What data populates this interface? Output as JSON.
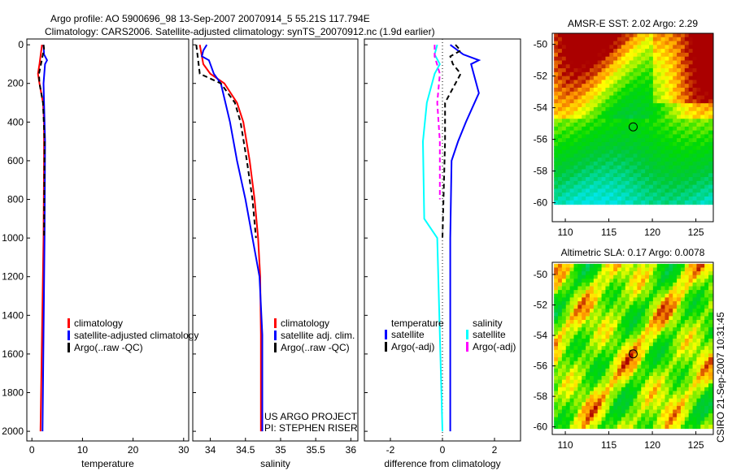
{
  "title_line1": "Argo profile: AO 5900696_98 13-Sep-2007 20070914_5 55.21S 117.794E",
  "title_line2": "Climatology: CARS2006. Satellite-adjusted climatology: synTS_20070912.nc (1.9d earlier)",
  "timestamp": "CSIRO 21-Sep-2007 10:31:45",
  "chart_data": [
    {
      "type": "line",
      "xlabel": "temperature",
      "xlim": [
        -1,
        31
      ],
      "xticks": [
        0,
        10,
        20,
        30
      ],
      "ylim": [
        2050,
        -30
      ],
      "yticks": [
        0,
        200,
        400,
        600,
        800,
        1000,
        1200,
        1400,
        1600,
        1800,
        2000
      ],
      "legend": [
        "climatology",
        "satellite-adjusted climatology",
        "Argo(..raw -QC)"
      ],
      "series": [
        {
          "name": "climatology",
          "color": "#ff0000",
          "dash": "",
          "depth": [
            0,
            100,
            150,
            200,
            300,
            400,
            600,
            1000,
            1500,
            2000
          ],
          "values": [
            2.0,
            1.5,
            1.2,
            1.5,
            2.2,
            2.4,
            2.4,
            2.3,
            2.0,
            1.7
          ]
        },
        {
          "name": "satellite-adjusted climatology",
          "color": "#0000ff",
          "dash": "",
          "depth": [
            0,
            50,
            80,
            100,
            200,
            500,
            1000,
            1500,
            2000
          ],
          "values": [
            2.3,
            2.4,
            3.0,
            2.6,
            2.3,
            2.6,
            2.5,
            2.3,
            2.1
          ]
        },
        {
          "name": "Argo(..raw -QC)",
          "color": "#000000",
          "dash": "6,4",
          "depth": [
            0,
            20,
            100,
            150,
            200,
            300,
            500,
            1000
          ],
          "values": [
            2.3,
            2.4,
            1.8,
            1.4,
            1.5,
            2.2,
            2.5,
            2.4
          ]
        }
      ]
    },
    {
      "type": "line",
      "xlabel": "salinity",
      "xlim": [
        33.75,
        36.1
      ],
      "xticks": [
        34,
        34.5,
        35,
        35.5,
        36
      ],
      "ylim": [
        2050,
        -30
      ],
      "legend": [
        "climatology",
        "satellite adj. clim.",
        "Argo(..raw -QC)"
      ],
      "annotation": [
        "US ARGO PROJECT",
        "PI: STEPHEN RISER"
      ],
      "series": [
        {
          "name": "climatology",
          "color": "#ff0000",
          "dash": "",
          "depth": [
            0,
            100,
            150,
            200,
            300,
            400,
            600,
            800,
            1000,
            1200,
            1500,
            2000
          ],
          "values": [
            33.85,
            33.9,
            34.0,
            34.2,
            34.38,
            34.47,
            34.56,
            34.63,
            34.68,
            34.71,
            34.72,
            34.72
          ]
        },
        {
          "name": "satellite adj. clim.",
          "color": "#0000ff",
          "dash": "",
          "depth": [
            0,
            30,
            60,
            80,
            150,
            200,
            400,
            600,
            800,
            1000,
            1200,
            1500,
            2000
          ],
          "values": [
            33.95,
            33.9,
            33.88,
            33.98,
            34.05,
            34.15,
            34.28,
            34.38,
            34.5,
            34.6,
            34.7,
            34.74,
            34.74
          ]
        },
        {
          "name": "Argo(..raw -QC)",
          "color": "#000000",
          "dash": "6,4",
          "depth": [
            0,
            150,
            200,
            300,
            400,
            600,
            800,
            1000
          ],
          "values": [
            33.8,
            33.85,
            34.15,
            34.35,
            34.43,
            34.52,
            34.6,
            34.65
          ]
        }
      ]
    },
    {
      "type": "line",
      "xlabel": "difference from climatology",
      "xlim": [
        -3,
        3
      ],
      "xticks": [
        -2,
        0,
        2
      ],
      "ylim": [
        2050,
        -30
      ],
      "legend_headers": [
        "temperature",
        "salinity"
      ],
      "legend": [
        "satellite",
        "Argo(-adj)",
        "satellite",
        "Argo(-adj)"
      ],
      "series": [
        {
          "name": "temperature satellite",
          "color": "#0000ff",
          "dash": "",
          "depth": [
            0,
            50,
            80,
            100,
            150,
            250,
            400,
            500,
            600,
            1000,
            2000
          ],
          "values": [
            0.3,
            0.8,
            1.4,
            1.1,
            1.2,
            1.4,
            0.9,
            0.6,
            0.35,
            0.3,
            0.3
          ]
        },
        {
          "name": "temperature Argo(-adj)",
          "color": "#000000",
          "dash": "6,4",
          "depth": [
            0,
            30,
            60,
            100,
            150,
            200,
            300,
            500,
            1000
          ],
          "values": [
            0.5,
            0.7,
            0.3,
            0.4,
            0.7,
            0.5,
            0.1,
            0.1,
            0.0
          ]
        },
        {
          "name": "salinity satellite",
          "color": "#00ffff",
          "dash": "",
          "depth": [
            0,
            50,
            100,
            150,
            300,
            500,
            900,
            1000,
            1500,
            2000
          ],
          "values": [
            -0.2,
            -0.3,
            -0.1,
            -0.3,
            -0.6,
            -0.75,
            -0.7,
            -0.2,
            -0.1,
            0.0
          ]
        },
        {
          "name": "salinity Argo(-adj)",
          "color": "#ff00ff",
          "dash": "6,4",
          "depth": [
            0,
            60,
            150,
            300,
            500,
            800
          ],
          "values": [
            -0.3,
            -0.3,
            -0.1,
            -0.2,
            -0.1,
            -0.1
          ]
        }
      ]
    },
    {
      "type": "heatmap",
      "title": "AMSR-E SST: 2.02 Argo: 2.29",
      "xlim": [
        108.5,
        127
      ],
      "ylim": [
        -61.2,
        -49.3
      ],
      "xticks": [
        110,
        115,
        120,
        125
      ],
      "yticks": [
        -50,
        -52,
        -54,
        -56,
        -58,
        -60
      ],
      "point": [
        117.794,
        -55.21
      ]
    },
    {
      "type": "heatmap",
      "title": "Altimetric SLA: 0.17 Argo: 0.0078",
      "xlim": [
        108.5,
        127
      ],
      "ylim": [
        -60.5,
        -49.2
      ],
      "xticks": [
        110,
        115,
        120,
        125
      ],
      "yticks": [
        -50,
        -52,
        -54,
        -56,
        -58,
        -60
      ],
      "point": [
        117.794,
        -55.21
      ]
    }
  ]
}
